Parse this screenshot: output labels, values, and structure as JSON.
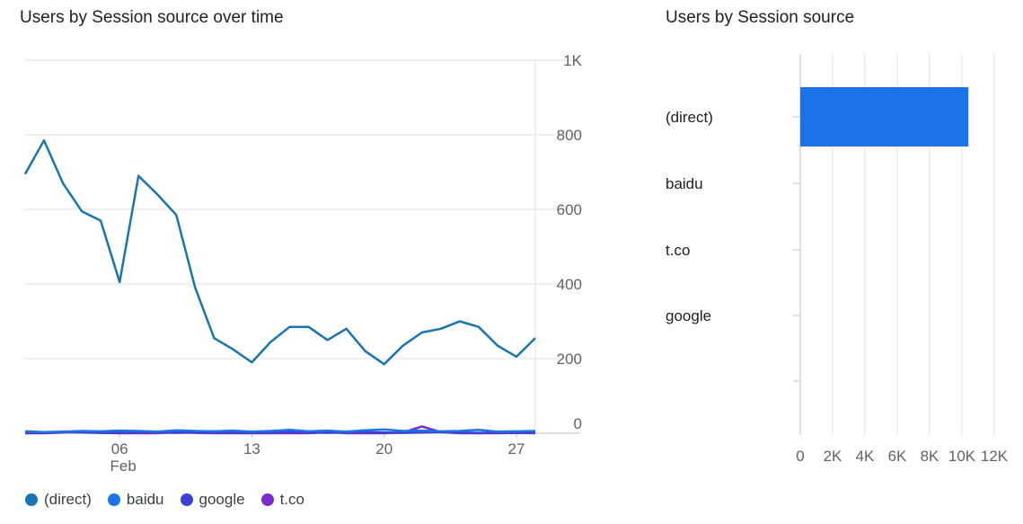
{
  "chart_data": [
    {
      "type": "line",
      "title": "Users by Session source over time",
      "x": [
        "Feb 01",
        "Feb 02",
        "Feb 03",
        "Feb 04",
        "Feb 05",
        "Feb 06",
        "Feb 07",
        "Feb 08",
        "Feb 09",
        "Feb 10",
        "Feb 11",
        "Feb 12",
        "Feb 13",
        "Feb 14",
        "Feb 15",
        "Feb 16",
        "Feb 17",
        "Feb 18",
        "Feb 19",
        "Feb 20",
        "Feb 21",
        "Feb 22",
        "Feb 23",
        "Feb 24",
        "Feb 25",
        "Feb 26",
        "Feb 27",
        "Feb 28"
      ],
      "x_tick_labels": [
        {
          "day": 5,
          "label": "06",
          "sublabel": "Feb"
        },
        {
          "day": 12,
          "label": "13",
          "sublabel": ""
        },
        {
          "day": 19,
          "label": "20",
          "sublabel": ""
        },
        {
          "day": 26,
          "label": "27",
          "sublabel": ""
        }
      ],
      "y_ticks": [
        "0",
        "200",
        "400",
        "600",
        "800",
        "1K"
      ],
      "ylim": [
        0,
        1000
      ],
      "grid": true,
      "legend_position": "bottom",
      "series": [
        {
          "name": "(direct)",
          "color": "#1a73b3",
          "values": [
            695,
            785,
            670,
            595,
            570,
            405,
            690,
            640,
            585,
            390,
            255,
            225,
            190,
            245,
            285,
            285,
            250,
            280,
            220,
            185,
            235,
            270,
            280,
            300,
            285,
            235,
            205,
            255
          ]
        },
        {
          "name": "baidu",
          "color": "#1a73e8",
          "values": [
            5,
            3,
            4,
            6,
            5,
            7,
            6,
            4,
            8,
            6,
            5,
            7,
            4,
            6,
            9,
            5,
            7,
            4,
            8,
            10,
            6,
            7,
            5,
            6,
            9,
            4,
            5,
            6
          ]
        },
        {
          "name": "google",
          "color": "#3d3ed6",
          "values": [
            2,
            1,
            3,
            2,
            1,
            2,
            3,
            2,
            1,
            2,
            3,
            2,
            1,
            2,
            3,
            2,
            1,
            2,
            3,
            2,
            1,
            2,
            3,
            2,
            1,
            2,
            3,
            2
          ]
        },
        {
          "name": "t.co",
          "color": "#7b2bcf",
          "values": [
            0,
            0,
            2,
            5,
            1,
            0,
            0,
            0,
            3,
            1,
            0,
            0,
            0,
            0,
            0,
            0,
            3,
            0,
            0,
            0,
            2,
            18,
            3,
            0,
            0,
            0,
            1,
            0
          ]
        }
      ]
    },
    {
      "type": "bar",
      "orientation": "horizontal",
      "title": "Users by Session source",
      "categories": [
        "(direct)",
        "baidu",
        "t.co",
        "google"
      ],
      "values": [
        10400,
        0,
        0,
        0
      ],
      "x_ticks": [
        "0",
        "2K",
        "4K",
        "6K",
        "8K",
        "10K",
        "12K"
      ],
      "xlim": [
        0,
        12000
      ],
      "bar_color": "#1a73e8",
      "grid": true
    }
  ]
}
